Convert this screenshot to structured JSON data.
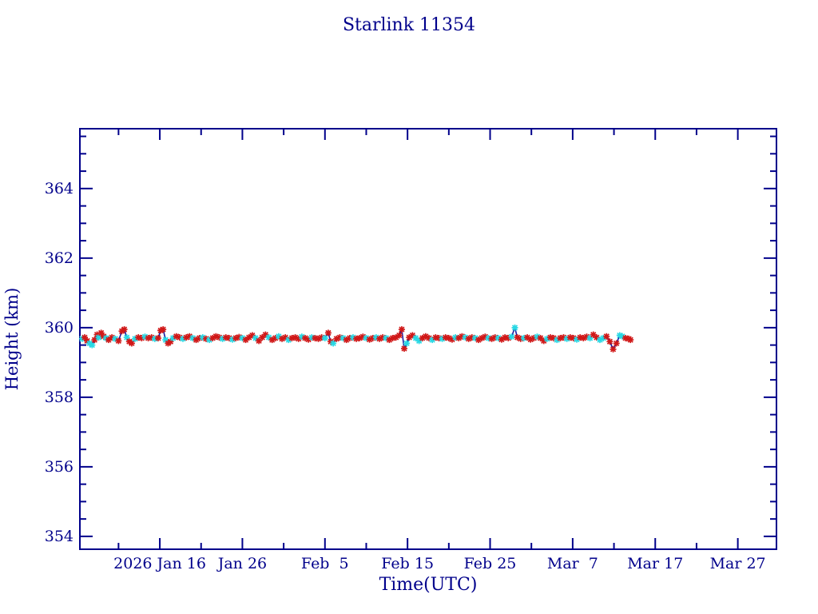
{
  "page": {
    "background": "#ffffff"
  },
  "chart_data": {
    "type": "scatter",
    "title": "Starlink 11354",
    "xlabel": "Time(UTC)",
    "ylabel": "Height (km)",
    "grid": false,
    "legend": "none",
    "colors": {
      "axis": "#00008b",
      "text": "#00008b",
      "connector_line": "#1a1aa0",
      "marker_red": "#d01818",
      "marker_cyan": "#28d8e4"
    },
    "x_axis": {
      "unit": "day of year 2026 (Jan 1 = 1)",
      "range": [
        6.32,
        90.68
      ],
      "major_ticks": [
        {
          "day": 16,
          "label": "2026 Jan 16"
        },
        {
          "day": 26,
          "label": "Jan 26"
        },
        {
          "day": 36,
          "label": "Feb  5"
        },
        {
          "day": 46,
          "label": "Feb 15"
        },
        {
          "day": 56,
          "label": "Feb 25"
        },
        {
          "day": 66,
          "label": "Mar  7"
        },
        {
          "day": 76,
          "label": "Mar 17"
        },
        {
          "day": 86,
          "label": "Mar 27"
        }
      ],
      "minor_ticks": [
        11,
        21,
        31,
        41,
        51,
        61,
        71,
        81
      ]
    },
    "y_axis": {
      "range": [
        353.63,
        365.72
      ],
      "major_ticks": [
        354,
        356,
        358,
        360,
        362,
        364
      ],
      "minor_ticks": [
        354.5,
        355,
        355.5,
        356.5,
        357,
        357.5,
        358.5,
        359,
        359.5,
        360.5,
        361,
        361.5,
        362.5,
        363,
        363.5,
        364.5,
        365,
        365.5
      ]
    },
    "series_note": "points = [day, height_km, color_index] ; color_index 0 = marker_red, 1 = marker_cyan; consecutive points joined by navy line",
    "points": [
      [
        6.6,
        359.68,
        1
      ],
      [
        6.9,
        359.72,
        0
      ],
      [
        7.2,
        359.62,
        0
      ],
      [
        7.5,
        359.55,
        1
      ],
      [
        7.8,
        359.5,
        1
      ],
      [
        8.1,
        359.65,
        0
      ],
      [
        8.4,
        359.8,
        0
      ],
      [
        8.6,
        359.72,
        1
      ],
      [
        8.9,
        359.85,
        0
      ],
      [
        9.2,
        359.75,
        0
      ],
      [
        9.5,
        359.7,
        1
      ],
      [
        9.8,
        359.65,
        0
      ],
      [
        10.2,
        359.72,
        0
      ],
      [
        10.6,
        359.68,
        1
      ],
      [
        11.0,
        359.62,
        0
      ],
      [
        11.4,
        359.9,
        0
      ],
      [
        11.7,
        359.95,
        0
      ],
      [
        12.0,
        359.72,
        1
      ],
      [
        12.3,
        359.6,
        0
      ],
      [
        12.6,
        359.55,
        0
      ],
      [
        13.0,
        359.68,
        1
      ],
      [
        13.4,
        359.72,
        0
      ],
      [
        13.8,
        359.7,
        0
      ],
      [
        14.2,
        359.74,
        1
      ],
      [
        14.6,
        359.7,
        0
      ],
      [
        15.0,
        359.72,
        0
      ],
      [
        15.4,
        359.68,
        1
      ],
      [
        15.8,
        359.7,
        0
      ],
      [
        16.1,
        359.92,
        0
      ],
      [
        16.4,
        359.95,
        0
      ],
      [
        16.7,
        359.65,
        1
      ],
      [
        17.0,
        359.55,
        0
      ],
      [
        17.3,
        359.6,
        0
      ],
      [
        17.6,
        359.7,
        1
      ],
      [
        18.0,
        359.75,
        0
      ],
      [
        18.4,
        359.72,
        0
      ],
      [
        18.8,
        359.68,
        1
      ],
      [
        19.2,
        359.72,
        0
      ],
      [
        19.6,
        359.75,
        0
      ],
      [
        20.0,
        359.7,
        1
      ],
      [
        20.4,
        359.65,
        0
      ],
      [
        20.8,
        359.7,
        0
      ],
      [
        21.2,
        359.72,
        1
      ],
      [
        21.6,
        359.68,
        0
      ],
      [
        22.0,
        359.65,
        1
      ],
      [
        22.4,
        359.7,
        0
      ],
      [
        22.8,
        359.75,
        0
      ],
      [
        23.2,
        359.72,
        0
      ],
      [
        23.6,
        359.68,
        1
      ],
      [
        24.0,
        359.72,
        0
      ],
      [
        24.4,
        359.7,
        0
      ],
      [
        24.8,
        359.66,
        1
      ],
      [
        25.2,
        359.7,
        0
      ],
      [
        25.6,
        359.73,
        0
      ],
      [
        26.0,
        359.7,
        1
      ],
      [
        26.4,
        359.65,
        0
      ],
      [
        26.8,
        359.72,
        0
      ],
      [
        27.2,
        359.78,
        0
      ],
      [
        27.6,
        359.7,
        1
      ],
      [
        28.0,
        359.62,
        0
      ],
      [
        28.4,
        359.72,
        0
      ],
      [
        28.8,
        359.8,
        0
      ],
      [
        29.2,
        359.72,
        1
      ],
      [
        29.6,
        359.65,
        0
      ],
      [
        30.0,
        359.7,
        0
      ],
      [
        30.4,
        359.75,
        1
      ],
      [
        30.8,
        359.68,
        0
      ],
      [
        31.2,
        359.72,
        0
      ],
      [
        31.6,
        359.65,
        1
      ],
      [
        32.0,
        359.7,
        0
      ],
      [
        32.4,
        359.72,
        0
      ],
      [
        32.8,
        359.68,
        0
      ],
      [
        33.2,
        359.74,
        1
      ],
      [
        33.6,
        359.7,
        0
      ],
      [
        34.0,
        359.66,
        0
      ],
      [
        34.4,
        359.72,
        1
      ],
      [
        34.8,
        359.7,
        0
      ],
      [
        35.2,
        359.68,
        0
      ],
      [
        35.6,
        359.72,
        0
      ],
      [
        36.0,
        359.7,
        1
      ],
      [
        36.4,
        359.85,
        0
      ],
      [
        36.7,
        359.6,
        0
      ],
      [
        37.0,
        359.55,
        1
      ],
      [
        37.4,
        359.68,
        0
      ],
      [
        37.8,
        359.72,
        0
      ],
      [
        38.2,
        359.7,
        1
      ],
      [
        38.6,
        359.65,
        0
      ],
      [
        39.0,
        359.7,
        0
      ],
      [
        39.4,
        359.72,
        1
      ],
      [
        39.8,
        359.68,
        0
      ],
      [
        40.2,
        359.7,
        0
      ],
      [
        40.6,
        359.74,
        0
      ],
      [
        41.0,
        359.7,
        1
      ],
      [
        41.4,
        359.66,
        0
      ],
      [
        41.8,
        359.7,
        0
      ],
      [
        42.2,
        359.72,
        1
      ],
      [
        42.6,
        359.68,
        0
      ],
      [
        43.0,
        359.72,
        0
      ],
      [
        43.4,
        359.7,
        1
      ],
      [
        43.8,
        359.65,
        0
      ],
      [
        44.2,
        359.7,
        0
      ],
      [
        44.6,
        359.72,
        0
      ],
      [
        45.0,
        359.78,
        0
      ],
      [
        45.3,
        359.95,
        0
      ],
      [
        45.6,
        359.4,
        0
      ],
      [
        45.9,
        359.55,
        1
      ],
      [
        46.2,
        359.72,
        0
      ],
      [
        46.6,
        359.78,
        0
      ],
      [
        47.0,
        359.7,
        1
      ],
      [
        47.4,
        359.62,
        1
      ],
      [
        47.8,
        359.7,
        0
      ],
      [
        48.2,
        359.75,
        0
      ],
      [
        48.6,
        359.7,
        0
      ],
      [
        49.0,
        359.65,
        1
      ],
      [
        49.4,
        359.72,
        0
      ],
      [
        49.8,
        359.7,
        0
      ],
      [
        50.2,
        359.68,
        1
      ],
      [
        50.6,
        359.72,
        0
      ],
      [
        51.0,
        359.7,
        0
      ],
      [
        51.4,
        359.66,
        0
      ],
      [
        51.8,
        359.72,
        1
      ],
      [
        52.2,
        359.7,
        0
      ],
      [
        52.6,
        359.75,
        0
      ],
      [
        53.0,
        359.72,
        1
      ],
      [
        53.4,
        359.68,
        0
      ],
      [
        53.8,
        359.72,
        0
      ],
      [
        54.2,
        359.7,
        1
      ],
      [
        54.6,
        359.65,
        0
      ],
      [
        55.0,
        359.7,
        0
      ],
      [
        55.4,
        359.74,
        0
      ],
      [
        55.8,
        359.7,
        1
      ],
      [
        56.2,
        359.68,
        0
      ],
      [
        56.6,
        359.72,
        0
      ],
      [
        57.0,
        359.7,
        1
      ],
      [
        57.4,
        359.66,
        0
      ],
      [
        57.8,
        359.72,
        0
      ],
      [
        58.2,
        359.7,
        0
      ],
      [
        58.6,
        359.74,
        1
      ],
      [
        59.0,
        360.0,
        1
      ],
      [
        59.3,
        359.72,
        0
      ],
      [
        59.7,
        359.68,
        0
      ],
      [
        60.1,
        359.7,
        1
      ],
      [
        60.5,
        359.72,
        0
      ],
      [
        60.9,
        359.66,
        0
      ],
      [
        61.3,
        359.7,
        0
      ],
      [
        61.7,
        359.74,
        1
      ],
      [
        62.1,
        359.7,
        0
      ],
      [
        62.5,
        359.62,
        0
      ],
      [
        62.9,
        359.68,
        1
      ],
      [
        63.3,
        359.72,
        0
      ],
      [
        63.7,
        359.7,
        0
      ],
      [
        64.1,
        359.65,
        1
      ],
      [
        64.5,
        359.7,
        0
      ],
      [
        64.9,
        359.72,
        0
      ],
      [
        65.3,
        359.68,
        1
      ],
      [
        65.7,
        359.72,
        0
      ],
      [
        66.1,
        359.7,
        0
      ],
      [
        66.5,
        359.66,
        1
      ],
      [
        66.9,
        359.72,
        0
      ],
      [
        67.3,
        359.7,
        0
      ],
      [
        67.7,
        359.74,
        0
      ],
      [
        68.1,
        359.7,
        1
      ],
      [
        68.5,
        359.8,
        0
      ],
      [
        68.9,
        359.72,
        0
      ],
      [
        69.3,
        359.65,
        1
      ],
      [
        69.7,
        359.7,
        1
      ],
      [
        70.1,
        359.75,
        0
      ],
      [
        70.5,
        359.6,
        0
      ],
      [
        70.9,
        359.38,
        0
      ],
      [
        71.3,
        359.55,
        0
      ],
      [
        71.7,
        359.78,
        1
      ],
      [
        72.0,
        359.75,
        1
      ],
      [
        72.4,
        359.7,
        0
      ],
      [
        72.8,
        359.68,
        0
      ],
      [
        73.0,
        359.65,
        0
      ]
    ]
  }
}
